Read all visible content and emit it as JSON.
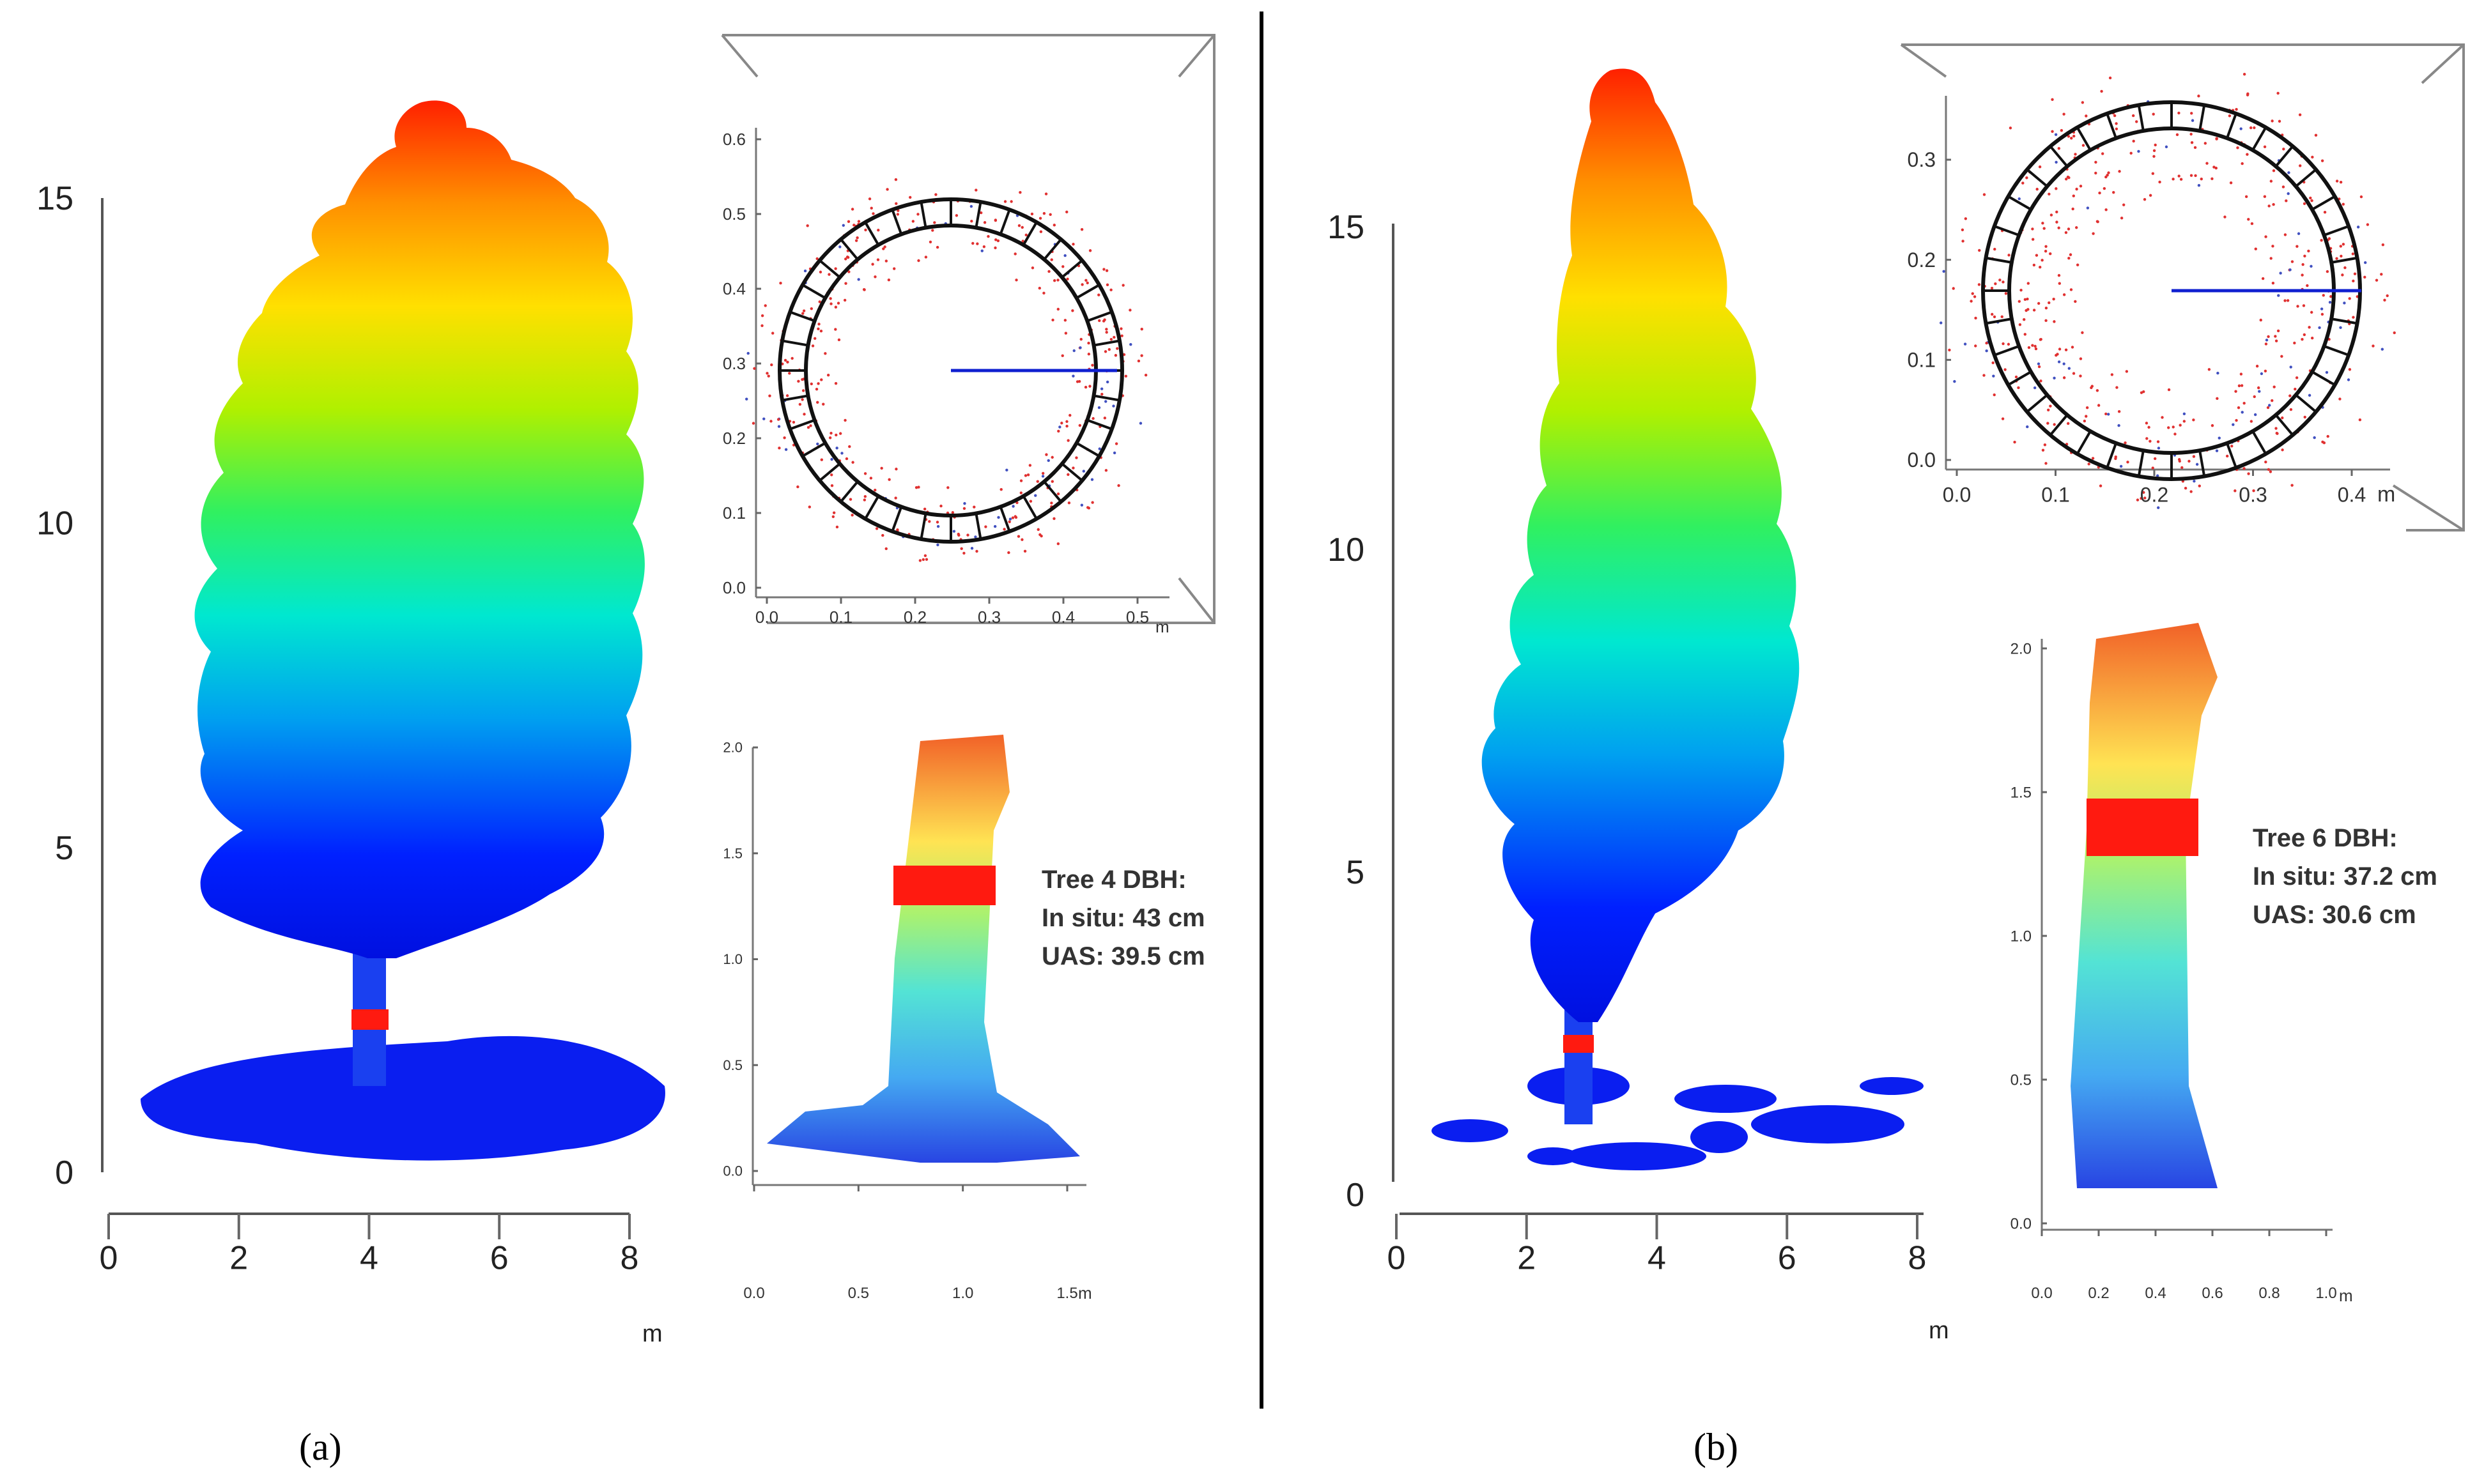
{
  "panels": [
    {
      "id": "a",
      "label": "(a)",
      "tree_plot": {
        "y_ticks": [
          "0",
          "5",
          "10",
          "15"
        ],
        "x_ticks": [
          "0",
          "2",
          "4",
          "6",
          "8"
        ],
        "x_unit": "m",
        "y_max": 16.5,
        "x_max": 8
      },
      "cross_section": {
        "y_ticks": [
          "0.0",
          "0.1",
          "0.2",
          "0.3",
          "0.4",
          "0.5",
          "0.6"
        ],
        "x_ticks": [
          "0.0",
          "0.1",
          "0.2",
          "0.3",
          "0.4",
          "0.5"
        ],
        "x_unit": "m",
        "segments": 36
      },
      "stem_section": {
        "y_ticks": [
          "0.0",
          "0.5",
          "1.0",
          "1.5",
          "2.0"
        ],
        "x_ticks": [
          "0.0",
          "0.5",
          "1.0",
          "1.5"
        ],
        "x_unit": "m",
        "dbh_band_height": [
          1.3,
          1.4
        ]
      },
      "annotation": {
        "title": "Tree 4 DBH:",
        "in_situ": "In situ: 43 cm",
        "uas": "UAS: 39.5 cm"
      }
    },
    {
      "id": "b",
      "label": "(b)",
      "tree_plot": {
        "y_ticks": [
          "0",
          "5",
          "10",
          "15"
        ],
        "x_ticks": [
          "0",
          "2",
          "4",
          "6",
          "8"
        ],
        "x_unit": "m",
        "y_max": 17.2,
        "x_max": 8
      },
      "cross_section": {
        "y_ticks": [
          "0.0",
          "0.1",
          "0.2",
          "0.3"
        ],
        "x_ticks": [
          "0.0",
          "0.1",
          "0.2",
          "0.3",
          "0.4"
        ],
        "x_unit": "m",
        "segments": 36
      },
      "stem_section": {
        "y_ticks": [
          "0.0",
          "0.5",
          "1.0",
          "1.5",
          "2.0"
        ],
        "x_ticks": [
          "0.0",
          "0.2",
          "0.4",
          "0.6",
          "0.8",
          "1.0"
        ],
        "x_unit": "m",
        "dbh_band_height": [
          1.3,
          1.4
        ]
      },
      "annotation": {
        "title": "Tree 6 DBH:",
        "in_situ": "In situ: 37.2 cm",
        "uas": "UAS: 30.6 cm"
      }
    }
  ]
}
